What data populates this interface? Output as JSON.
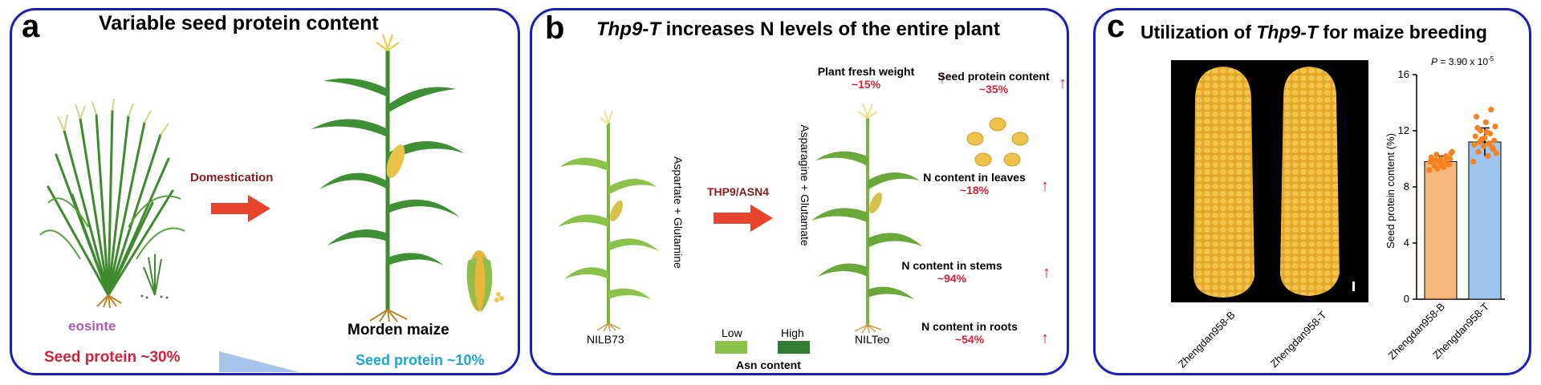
{
  "panel_a": {
    "label": "a",
    "title": "Variable seed protein content",
    "arrow_label": "Domestication",
    "teosinte_label": "eosinte",
    "maize_label": "Morden maize",
    "teo_protein": "Seed protein ~30%",
    "maize_protein": "Seed protein ~10%",
    "colors": {
      "arrow": "#e8432c",
      "teo_text": "#d4213a",
      "maize_text": "#1ba6d9",
      "teo_name": "#b05ab3"
    }
  },
  "panel_b": {
    "label": "b",
    "title_italic": "Thp9-T",
    "title_rest": " increases N levels of the entire plant",
    "left_plant": "NILB73",
    "right_plant": "NILTeo",
    "left_vertical": "Aspartate + Glutamine",
    "right_vertical": "Asparagine + Glutamate",
    "arrow_label": "THP9/ASN4",
    "legend_low": "Low",
    "legend_high": "High",
    "legend_title": "Asn content",
    "traits": [
      {
        "name": "Plant fresh weight",
        "value": "~15%"
      },
      {
        "name": "Seed protein content",
        "value": "~35%"
      },
      {
        "name": "N content in leaves",
        "value": "~18%"
      },
      {
        "name": "N content in stems",
        "value": "~94%"
      },
      {
        "name": "N content in roots",
        "value": "~54%"
      }
    ],
    "colors": {
      "arrow": "#e8432c",
      "value": "#d4213a",
      "low": "#8bc34a",
      "high": "#2e7d32"
    }
  },
  "panel_c": {
    "label": "c",
    "title_pre": "Utilization of ",
    "title_italic": "Thp9-T",
    "title_post": " for maize breeding",
    "photo_labels": [
      "Zhengdan958-B",
      "Zhengdan958-T"
    ],
    "chart_data": {
      "type": "bar",
      "categories": [
        "Zhengdan958-B",
        "Zhengdan958-T"
      ],
      "values": [
        9.8,
        11.2
      ],
      "error": [
        0.4,
        1.0
      ],
      "points": [
        [
          9.2,
          9.4,
          9.5,
          9.6,
          9.7,
          9.8,
          9.8,
          9.9,
          10.0,
          10.0,
          10.1,
          10.2,
          10.3,
          10.4,
          9.6,
          9.9,
          10.1,
          9.3,
          10.5,
          9.7
        ],
        [
          9.8,
          10.2,
          10.5,
          10.7,
          10.9,
          11.0,
          11.1,
          11.2,
          11.3,
          11.5,
          11.6,
          11.8,
          12.0,
          12.3,
          12.6,
          13.0,
          13.5,
          11.4,
          10.4,
          11.9,
          12.2,
          10.8
        ]
      ],
      "ylabel": "Seed protein content (%)",
      "ylim": [
        0,
        16
      ],
      "yticks": [
        0,
        4,
        8,
        12,
        16
      ],
      "annotation": "P = 3.90 x 10",
      "annotation_exp": "-5",
      "colors": [
        "#f7b77a",
        "#9ec5ee"
      ],
      "point_color": "#f5821f"
    }
  }
}
